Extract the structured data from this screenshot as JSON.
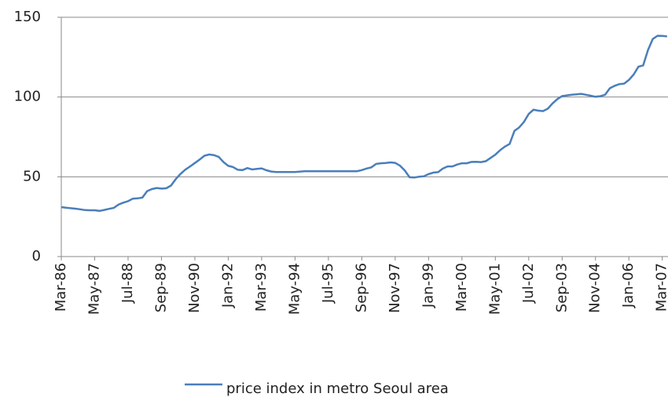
{
  "chart_data": {
    "type": "line",
    "categories": [
      "Mar-86",
      null,
      null,
      null,
      null,
      null,
      null,
      "May-87",
      null,
      null,
      null,
      null,
      null,
      null,
      "Jul-88",
      null,
      null,
      null,
      null,
      null,
      null,
      "Sep-89",
      null,
      null,
      null,
      null,
      null,
      null,
      "Nov-90",
      null,
      null,
      null,
      null,
      null,
      null,
      "Jan-92",
      null,
      null,
      null,
      null,
      null,
      null,
      "Mar-93",
      null,
      null,
      null,
      null,
      null,
      null,
      "May-94",
      null,
      null,
      null,
      null,
      null,
      null,
      "Jul-95",
      null,
      null,
      null,
      null,
      null,
      null,
      "Sep-96",
      null,
      null,
      null,
      null,
      null,
      null,
      "Nov-97",
      null,
      null,
      null,
      null,
      null,
      null,
      "Jan-99",
      null,
      null,
      null,
      null,
      null,
      null,
      "Mar-00",
      null,
      null,
      null,
      null,
      null,
      null,
      "May-01",
      null,
      null,
      null,
      null,
      null,
      null,
      "Jul-02",
      null,
      null,
      null,
      null,
      null,
      null,
      "Sep-03",
      null,
      null,
      null,
      null,
      null,
      null,
      "Nov-04",
      null,
      null,
      null,
      null,
      null,
      null,
      "Jan-06",
      null,
      null,
      null,
      null,
      null,
      null,
      "Mar-07",
      null
    ],
    "series": [
      {
        "name": "price index in metro Seoul area",
        "color": "#4a7ebb",
        "values": [
          31,
          30.6,
          30.3,
          30,
          29.6,
          29.1,
          29,
          29,
          28.6,
          29.2,
          29.9,
          30.5,
          32.6,
          33.8,
          34.7,
          36.3,
          36.5,
          37,
          41,
          42.3,
          43,
          42.6,
          42.8,
          44.5,
          48.6,
          51.8,
          54.5,
          56.5,
          58.6,
          60.8,
          63.2,
          64,
          63.6,
          62.5,
          59.2,
          56.9,
          56.1,
          54.4,
          54.2,
          55.5,
          54.6,
          55,
          55.3,
          54.1,
          53.3,
          53,
          53,
          53,
          53,
          53,
          53.2,
          53.5,
          53.5,
          53.5,
          53.5,
          53.5,
          53.5,
          53.5,
          53.5,
          53.5,
          53.5,
          53.5,
          53.5,
          54.2,
          55.2,
          55.9,
          58.1,
          58.5,
          58.6,
          59,
          58.7,
          57,
          54,
          49.7,
          49.5,
          50,
          50.3,
          51.7,
          52.6,
          52.9,
          55.2,
          56.5,
          56.5,
          57.7,
          58.5,
          58.5,
          59.3,
          59.4,
          59.2,
          59.8,
          61.8,
          63.9,
          66.7,
          68.9,
          70.6,
          78.8,
          80.9,
          84.4,
          89.4,
          92,
          91.5,
          91.2,
          92.7,
          96,
          98.7,
          100.6,
          101,
          101.4,
          101.7,
          102,
          101.4,
          100.8,
          100.2,
          100.5,
          101.4,
          105.5,
          107,
          108.1,
          108.4,
          110.7,
          114.1,
          119,
          119.8,
          129.4,
          136.4,
          138.4,
          138.3,
          138
        ]
      }
    ],
    "ylim": [
      0,
      150
    ],
    "yticks": [
      0,
      50,
      100,
      150
    ],
    "grid": true
  }
}
